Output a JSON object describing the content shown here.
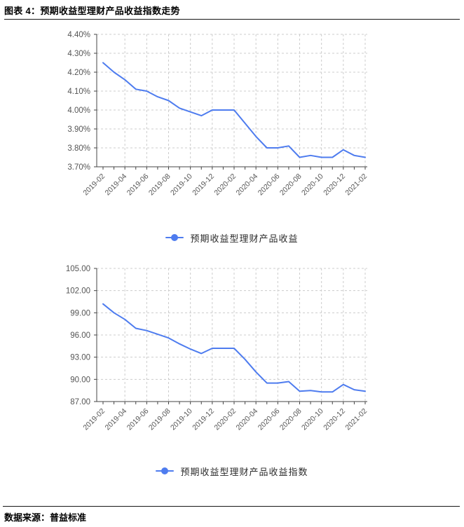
{
  "page": {
    "title": "图表 4：预期收益型理财产品收益指数走势",
    "source_label": "数据来源：普益标准"
  },
  "colors": {
    "line": "#4E7CEF",
    "grid": "#cccccc",
    "axis": "#444444",
    "tick_label": "#555555",
    "title_text": "#000000"
  },
  "chart_data": [
    {
      "type": "line",
      "series_name": "预期收益型理财产品收益",
      "x": [
        "2019-02",
        "2019-03",
        "2019-04",
        "2019-05",
        "2019-06",
        "2019-07",
        "2019-08",
        "2019-09",
        "2019-10",
        "2019-11",
        "2019-12",
        "2020-01",
        "2020-02",
        "2020-03",
        "2020-04",
        "2020-05",
        "2020-06",
        "2020-07",
        "2020-08",
        "2020-09",
        "2020-10",
        "2020-11",
        "2020-12",
        "2021-01",
        "2021-02"
      ],
      "x_tick_labels": [
        "2019-02",
        "2019-04",
        "2019-06",
        "2019-08",
        "2019-10",
        "2019-12",
        "2020-02",
        "2020-04",
        "2020-06",
        "2020-08",
        "2020-10",
        "2020-12",
        "2021-02"
      ],
      "values": [
        4.25,
        4.2,
        4.16,
        4.11,
        4.1,
        4.07,
        4.05,
        4.01,
        3.99,
        3.97,
        4.0,
        4.0,
        4.0,
        3.93,
        3.86,
        3.8,
        3.8,
        3.81,
        3.75,
        3.76,
        3.75,
        3.75,
        3.79,
        3.76,
        3.75
      ],
      "ylim": [
        3.7,
        4.4
      ],
      "y_tick_values": [
        4.4,
        4.3,
        4.2,
        4.1,
        4.0,
        3.9,
        3.8,
        3.7
      ],
      "y_tick_labels": [
        "4.40%",
        "4.30%",
        "4.20%",
        "4.10%",
        "4.00%",
        "3.90%",
        "3.80%",
        "3.70%"
      ],
      "grid": "dashed",
      "legend_position": "bottom"
    },
    {
      "type": "line",
      "series_name": "预期收益型理财产品收益指数",
      "x": [
        "2019-02",
        "2019-03",
        "2019-04",
        "2019-05",
        "2019-06",
        "2019-07",
        "2019-08",
        "2019-09",
        "2019-10",
        "2019-11",
        "2019-12",
        "2020-01",
        "2020-02",
        "2020-03",
        "2020-04",
        "2020-05",
        "2020-06",
        "2020-07",
        "2020-08",
        "2020-09",
        "2020-10",
        "2020-11",
        "2020-12",
        "2021-01",
        "2021-02"
      ],
      "x_tick_labels": [
        "2019-02",
        "2019-04",
        "2019-06",
        "2019-08",
        "2019-10",
        "2019-12",
        "2020-02",
        "2020-04",
        "2020-06",
        "2020-08",
        "2020-10",
        "2020-12",
        "2021-02"
      ],
      "values": [
        100.2,
        99.0,
        98.1,
        96.9,
        96.6,
        96.1,
        95.6,
        94.8,
        94.1,
        93.5,
        94.2,
        94.2,
        94.2,
        92.7,
        91.0,
        89.5,
        89.5,
        89.7,
        88.4,
        88.5,
        88.3,
        88.3,
        89.3,
        88.6,
        88.4
      ],
      "ylim": [
        87.0,
        105.0
      ],
      "y_tick_values": [
        105,
        102,
        99,
        96,
        93,
        90,
        87
      ],
      "y_tick_labels": [
        "105.00",
        "102.00",
        "99.00",
        "96.00",
        "93.00",
        "90.00",
        "87.00"
      ],
      "grid": "dashed",
      "legend_position": "bottom"
    }
  ]
}
